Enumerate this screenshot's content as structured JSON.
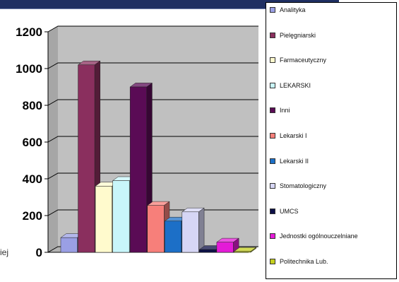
{
  "chart_data": {
    "type": "bar",
    "ylim": [
      0,
      1200
    ],
    "yticks": [
      "0",
      "200",
      "400",
      "600",
      "800",
      "1000",
      "1200"
    ],
    "grid": true,
    "legend_position": "right",
    "series": [
      {
        "name": "Analityka",
        "value": 80,
        "color": "#9a9fe4"
      },
      {
        "name": "Pielęgniarski",
        "value": 1020,
        "color": "#8a2f5e"
      },
      {
        "name": "Farmaceutyczny",
        "value": 360,
        "color": "#fffacd"
      },
      {
        "name": "LEKARSKI",
        "value": 390,
        "color": "#c8f6fa"
      },
      {
        "name": "Inni",
        "value": 900,
        "color": "#5a0b55"
      },
      {
        "name": "Lekarski I",
        "value": 255,
        "color": "#f77f7a"
      },
      {
        "name": "Lekarski II",
        "value": 170,
        "color": "#1c6fc7"
      },
      {
        "name": "Stomatologiczny",
        "value": 220,
        "color": "#d6d6f5"
      },
      {
        "name": "UMCS",
        "value": 15,
        "color": "#0c0f47"
      },
      {
        "name": "Jednostki ogólnouczelniane",
        "value": 55,
        "color": "#e41bd7"
      },
      {
        "name": "Politechnika Lub.",
        "value": 5,
        "color": "#c4cf1e"
      }
    ]
  },
  "stray_text": "iej"
}
